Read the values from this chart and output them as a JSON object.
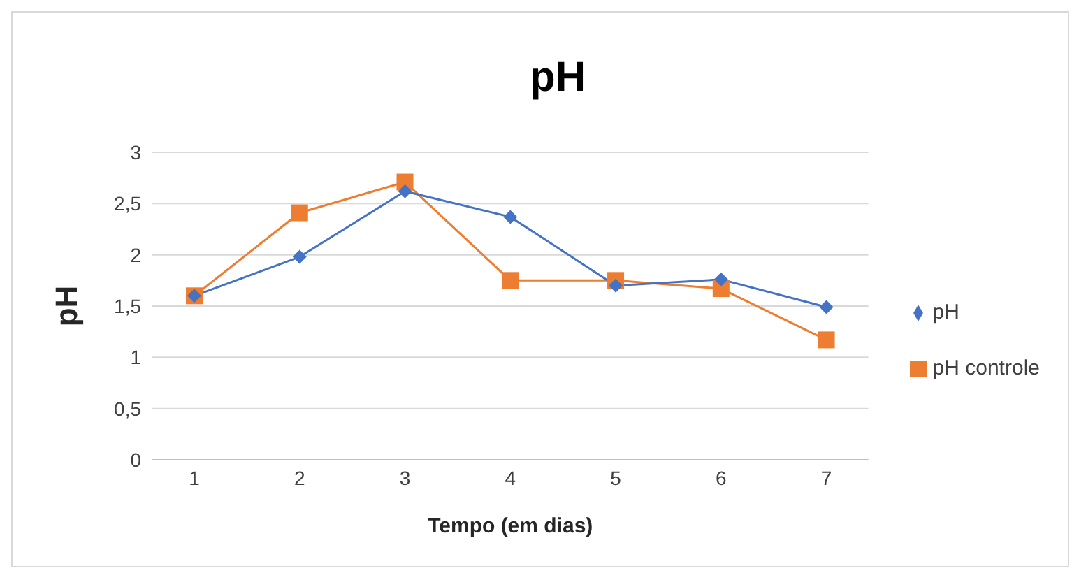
{
  "chart_data": {
    "type": "line",
    "title": "pH",
    "xlabel": "Tempo (em dias)",
    "ylabel": "pH",
    "categories": [
      "1",
      "2",
      "3",
      "4",
      "5",
      "6",
      "7"
    ],
    "series": [
      {
        "name": "pH",
        "color": "#4472c4",
        "marker": "diamond",
        "values": [
          1.6,
          1.98,
          2.62,
          2.37,
          1.7,
          1.76,
          1.49
        ]
      },
      {
        "name": "pH controle",
        "color": "#ed7d31",
        "marker": "square",
        "values": [
          1.6,
          2.41,
          2.71,
          1.75,
          1.75,
          1.67,
          1.17
        ]
      }
    ],
    "ylim": [
      0,
      3
    ],
    "yticks": [
      0,
      {
        "value": 0.5,
        "label": "0,5"
      },
      1,
      {
        "value": 1.5,
        "label": "1,5"
      },
      2,
      {
        "value": 2.5,
        "label": "2,5"
      },
      3
    ],
    "grid": "y",
    "legend": "right"
  }
}
